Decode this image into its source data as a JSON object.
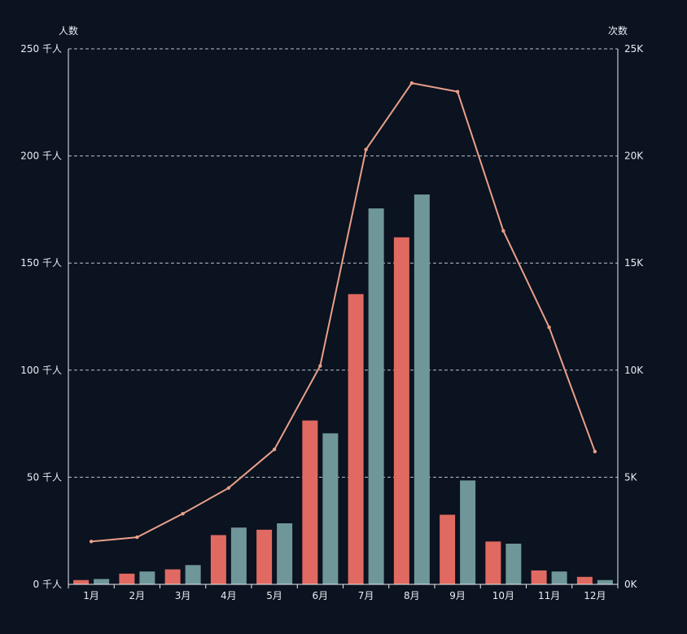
{
  "chart_data": {
    "type": "bar",
    "categories": [
      "1月",
      "2月",
      "3月",
      "4月",
      "5月",
      "6月",
      "7月",
      "8月",
      "9月",
      "10月",
      "11月",
      "12月"
    ],
    "left_axis": {
      "name": "人数",
      "ticks": [
        "0 千人",
        "50 千人",
        "100 千人",
        "150 千人",
        "200 千人",
        "250 千人"
      ],
      "ylim": [
        0,
        250
      ]
    },
    "right_axis": {
      "name": "次数",
      "ticks": [
        "0K",
        "5K",
        "10K",
        "15K",
        "20K",
        "25K"
      ],
      "ylim": [
        0,
        25000
      ]
    },
    "series": [
      {
        "type": "bar",
        "axis": "left",
        "color": "#e06a61",
        "values": [
          2,
          5,
          7,
          23,
          25.5,
          76.5,
          135.5,
          162,
          32.5,
          20,
          6.5,
          3.5
        ]
      },
      {
        "type": "bar",
        "axis": "left",
        "color": "#6f979a",
        "values": [
          2.5,
          6,
          9,
          26.5,
          28.5,
          70.5,
          175.5,
          182,
          48.5,
          19,
          6,
          2
        ]
      },
      {
        "type": "line",
        "axis": "right",
        "color": "#e8a088",
        "values": [
          2000,
          2200,
          3300,
          4500,
          6300,
          10200,
          20300,
          23400,
          23000,
          16500,
          12000,
          6200
        ]
      }
    ],
    "grid": true
  }
}
